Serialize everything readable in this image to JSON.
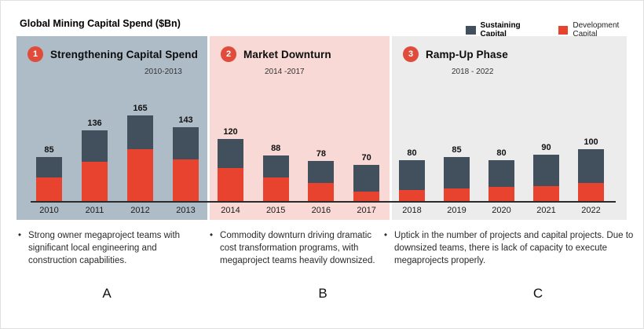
{
  "page": {
    "title": "Global Mining Capital Spend ($Bn)"
  },
  "legend": {
    "items": [
      {
        "label": "Sustaining Capital",
        "color": "#41505c"
      },
      {
        "label": "Development Capital",
        "color": "#e8432f"
      }
    ]
  },
  "colors": {
    "sustaining": "#41505c",
    "development": "#e8432f",
    "phase1_bg": "#aebcc8",
    "phase2_bg": "#f8d9d6",
    "phase3_bg": "#ececec",
    "badge": "#e14b3b",
    "axis": "#2b2b2b"
  },
  "phases": [
    {
      "number": "1",
      "title": "Strengthening Capital Spend",
      "range": "2010-2013",
      "bg": "#aebcc8",
      "years": [
        "2010",
        "2011",
        "2012",
        "2013"
      ],
      "bullet": "Strong owner megaproject teams with significant local engineering and construction capabilities.",
      "letter": "A"
    },
    {
      "number": "2",
      "title": "Market Downturn",
      "range": "2014 -2017",
      "bg": "#f8d9d6",
      "years": [
        "2014",
        "2015",
        "2016",
        "2017"
      ],
      "bullet": "Commodity downturn driving dramatic cost transformation programs, with megaproject teams heavily downsized.",
      "letter": "B"
    },
    {
      "number": "3",
      "title": "Ramp-Up Phase",
      "range": "2018 - 2022",
      "bg": "#ececec",
      "years": [
        "2018",
        "2019",
        "2020",
        "2021",
        "2022"
      ],
      "bullet": "Uptick in the number of projects and capital projects. Due to downsized teams, there is lack of capacity to execute megaprojects properly.",
      "letter": "C"
    }
  ],
  "chart_data": {
    "type": "bar",
    "stacked": true,
    "title": "Global Mining Capital Spend ($Bn)",
    "categories": [
      "2010",
      "2011",
      "2012",
      "2013",
      "2014",
      "2015",
      "2016",
      "2017",
      "2018",
      "2019",
      "2020",
      "2021",
      "2022"
    ],
    "series": [
      {
        "name": "Development Capital",
        "color": "#e8432f",
        "values": [
          46,
          77,
          101,
          81,
          64,
          46,
          36,
          20,
          22,
          25,
          28,
          30,
          36
        ]
      },
      {
        "name": "Sustaining Capital",
        "color": "#41505c",
        "values": [
          39,
          59,
          64,
          62,
          56,
          42,
          42,
          50,
          58,
          60,
          52,
          60,
          64
        ]
      }
    ],
    "totals": [
      85,
      136,
      165,
      143,
      120,
      88,
      78,
      70,
      80,
      85,
      80,
      90,
      100
    ],
    "data_labels": "totals shown above each bar",
    "xlabel": "",
    "ylabel": "",
    "ylim": [
      0,
      180
    ],
    "grid": false,
    "legend_position": "top-right",
    "phase_bands": [
      {
        "label": "Strengthening Capital Spend",
        "years": "2010-2013"
      },
      {
        "label": "Market Downturn",
        "years": "2014 -2017"
      },
      {
        "label": "Ramp-Up Phase",
        "years": "2018 - 2022"
      }
    ]
  }
}
